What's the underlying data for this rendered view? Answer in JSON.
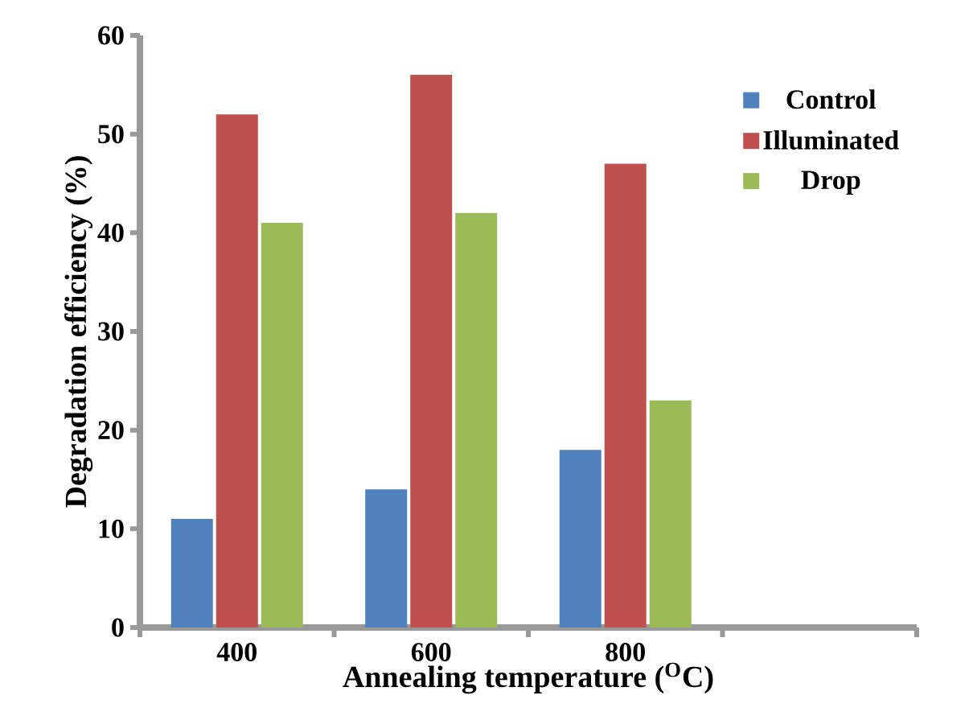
{
  "chart_data": {
    "type": "bar",
    "xlabel": "Annealing temperature  ($^{O}$C)",
    "ylabel": "Degradation efficiency (%)",
    "categories": [
      "400",
      "600",
      "800",
      null
    ],
    "series": [
      {
        "name": "Control",
        "color": "#4f81bd",
        "values": [
          11,
          14,
          18,
          null
        ]
      },
      {
        "name": "Illuminated",
        "color": "#c0504d",
        "values": [
          52,
          56,
          47,
          null
        ]
      },
      {
        "name": "Drop",
        "color": "#9bbb59",
        "values": [
          41,
          42,
          23,
          null
        ]
      }
    ],
    "ylim": [
      0,
      60
    ],
    "yticks": [
      0,
      10,
      20,
      30,
      40,
      50,
      60
    ],
    "grid": false,
    "legend": "top right"
  }
}
